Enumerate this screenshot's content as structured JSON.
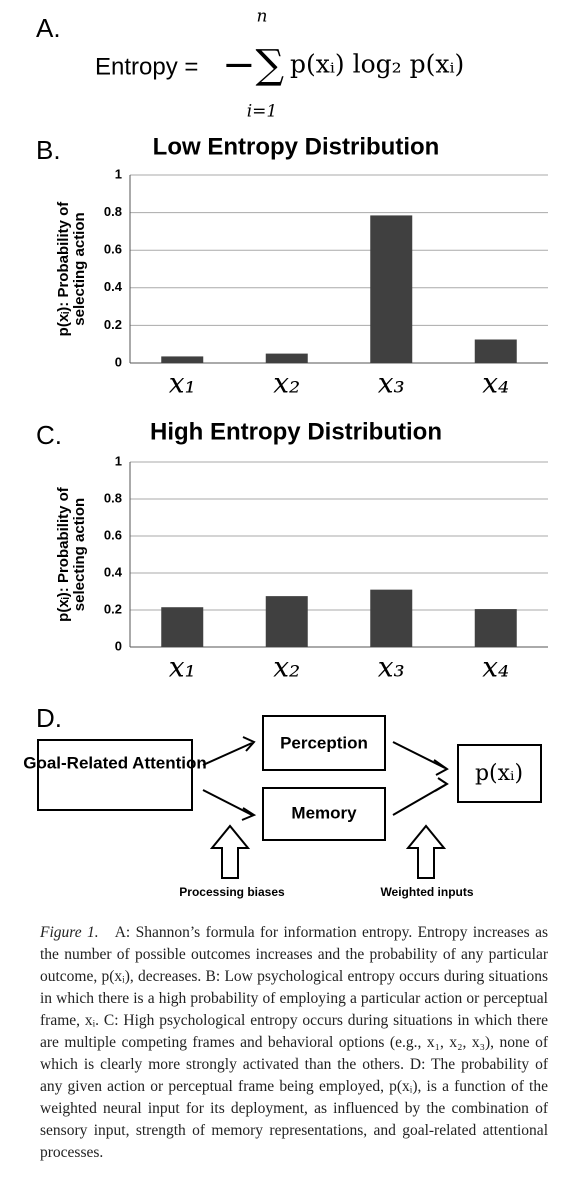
{
  "panel_a": {
    "label": "A.",
    "lhs": "Entropy =",
    "operator": "−∑",
    "upper": "n",
    "lower": "i=1",
    "term": "p(xᵢ) log₂ p(xᵢ)"
  },
  "chart_data": [
    {
      "type": "bar",
      "panel_label": "B.",
      "title": "Low Entropy Distribution",
      "ylabel": [
        "p(xᵢ): Probability of",
        "selecting action"
      ],
      "categories": [
        "x₁",
        "x₂",
        "x₃",
        "x₄"
      ],
      "values": [
        0.035,
        0.05,
        0.785,
        0.125
      ],
      "color": "#404040",
      "ylim": [
        0,
        1
      ],
      "yticks": [
        0,
        0.2,
        0.4,
        0.6,
        0.8,
        1
      ],
      "grid": true
    },
    {
      "type": "bar",
      "panel_label": "C.",
      "title": "High Entropy Distribution",
      "ylabel": [
        "p(xᵢ): Probability of",
        "selecting action"
      ],
      "categories": [
        "x₁",
        "x₂",
        "x₃",
        "x₄"
      ],
      "values": [
        0.215,
        0.275,
        0.31,
        0.205
      ],
      "color": "#404040",
      "ylim": [
        0,
        1
      ],
      "yticks": [
        0,
        0.2,
        0.4,
        0.6,
        0.8,
        1
      ],
      "grid": true
    }
  ],
  "panel_d": {
    "label": "D.",
    "nodes": [
      "Goal-Related Attention",
      "Perception",
      "Memory",
      "p(xᵢ)"
    ],
    "annotations": [
      "Processing biases",
      "Weighted inputs"
    ]
  },
  "caption": {
    "label": "Figure 1.",
    "text": "A: Shannon’s formula for information entropy. Entropy increases as the number of possible outcomes increases and the probability of any particular outcome, p(xᵢ), decreases. B: Low psychological entropy occurs during situations in which there is a high probability of employing a particular action or perceptual frame, xᵢ. C: High psychological entropy occurs during situations in which there are multiple competing frames and behavioral options (e.g., x₁, x₂, x₃), none of which is clearly more strongly activated than the others. D: The probability of any given action or perceptual frame being employed, p(xᵢ), is a function of the weighted neural input for its deployment, as influenced by the combination of sensory input, strength of memory representations, and goal-related attentional processes."
  }
}
